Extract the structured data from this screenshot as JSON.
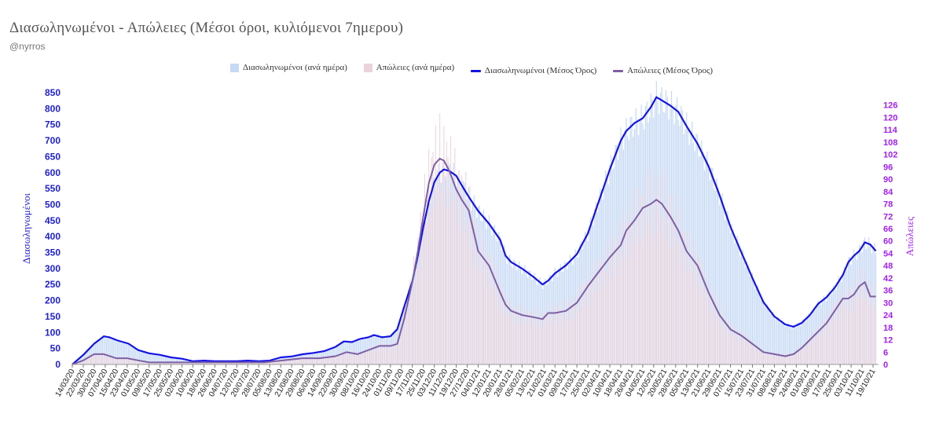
{
  "title": "Διασωληνωμένοι - Απώλειες (Μέσοι όροι, κυλιόμενοι 7ημερου)",
  "subtitle": "@nyrros",
  "legend": [
    {
      "label": "Διασωληνωμένοι (ανά ημέρα)",
      "kind": "box",
      "color": "#c6d9f5"
    },
    {
      "label": "Απώλειες (ανά ημέρα)",
      "kind": "box",
      "color": "#ead3dc"
    },
    {
      "label": "Διασωληνωμένοι (Μέσος Όρος)",
      "kind": "line",
      "color": "#1414e6"
    },
    {
      "label": "Απώλειες (Μέσος Όρος)",
      "kind": "line",
      "color": "#7e5fa3"
    }
  ],
  "chart_data": {
    "type": "line",
    "ylabel": "Διασωληνωμένοι",
    "y2label": "Απώλειες",
    "ylim": [
      0,
      850
    ],
    "y2lim": [
      0,
      132
    ],
    "yticks": [
      0,
      50,
      100,
      150,
      200,
      250,
      300,
      350,
      400,
      450,
      500,
      550,
      600,
      650,
      700,
      750,
      800,
      850
    ],
    "y2ticks": [
      0,
      6,
      12,
      18,
      24,
      30,
      36,
      42,
      48,
      54,
      60,
      66,
      72,
      78,
      84,
      90,
      96,
      102,
      108,
      114,
      120,
      126
    ],
    "x_start": "2020-03-14",
    "x_end": "2021-10-23",
    "xticks": [
      "14/03/20",
      "22/03/20",
      "30/03/20",
      "07/04/20",
      "15/04/20",
      "23/04/20",
      "01/05/20",
      "09/05/20",
      "17/05/20",
      "25/05/20",
      "02/06/20",
      "10/06/20",
      "18/06/20",
      "26/06/20",
      "04/07/20",
      "12/07/20",
      "20/07/20",
      "28/07/20",
      "05/08/20",
      "13/08/20",
      "21/08/20",
      "29/08/20",
      "06/09/20",
      "14/09/20",
      "22/09/20",
      "30/09/20",
      "08/10/20",
      "16/10/20",
      "24/10/20",
      "01/11/20",
      "09/11/20",
      "17/11/20",
      "25/11/20",
      "03/12/20",
      "11/12/20",
      "19/12/20",
      "27/12/20",
      "04/01/21",
      "12/01/21",
      "20/01/21",
      "28/01/21",
      "05/02/21",
      "13/02/21",
      "21/02/21",
      "01/03/21",
      "09/03/21",
      "17/03/21",
      "25/03/21",
      "02/04/21",
      "10/04/21",
      "18/04/21",
      "26/04/21",
      "04/05/21",
      "12/05/21",
      "20/05/21",
      "28/05/21",
      "05/06/21",
      "13/06/21",
      "21/06/21",
      "29/06/21",
      "07/07/21",
      "15/07/21",
      "23/07/21",
      "31/07/21",
      "08/08/21",
      "16/08/21",
      "24/08/21",
      "01/09/21",
      "09/09/21",
      "17/09/21",
      "25/09/21",
      "03/10/21",
      "11/10/21",
      "19/10/21"
    ],
    "series": [
      {
        "name": "Διασωληνωμένοι (Μέσος Όρος)",
        "axis": "left",
        "color": "#1414e6",
        "points": [
          [
            "2020-03-14",
            0
          ],
          [
            "2020-03-22",
            30
          ],
          [
            "2020-03-30",
            65
          ],
          [
            "2020-04-06",
            88
          ],
          [
            "2020-04-10",
            85
          ],
          [
            "2020-04-16",
            75
          ],
          [
            "2020-04-24",
            65
          ],
          [
            "2020-05-01",
            45
          ],
          [
            "2020-05-09",
            35
          ],
          [
            "2020-05-17",
            30
          ],
          [
            "2020-05-25",
            22
          ],
          [
            "2020-06-02",
            18
          ],
          [
            "2020-06-10",
            10
          ],
          [
            "2020-06-18",
            12
          ],
          [
            "2020-06-26",
            10
          ],
          [
            "2020-07-04",
            10
          ],
          [
            "2020-07-12",
            10
          ],
          [
            "2020-07-20",
            12
          ],
          [
            "2020-07-28",
            10
          ],
          [
            "2020-08-05",
            12
          ],
          [
            "2020-08-13",
            22
          ],
          [
            "2020-08-21",
            25
          ],
          [
            "2020-08-29",
            32
          ],
          [
            "2020-09-06",
            36
          ],
          [
            "2020-09-14",
            42
          ],
          [
            "2020-09-22",
            55
          ],
          [
            "2020-09-28",
            72
          ],
          [
            "2020-10-04",
            70
          ],
          [
            "2020-10-10",
            80
          ],
          [
            "2020-10-16",
            85
          ],
          [
            "2020-10-20",
            92
          ],
          [
            "2020-10-26",
            85
          ],
          [
            "2020-11-01",
            88
          ],
          [
            "2020-11-06",
            110
          ],
          [
            "2020-11-11",
            180
          ],
          [
            "2020-11-17",
            260
          ],
          [
            "2020-11-21",
            340
          ],
          [
            "2020-11-25",
            430
          ],
          [
            "2020-11-29",
            510
          ],
          [
            "2020-12-03",
            570
          ],
          [
            "2020-12-07",
            600
          ],
          [
            "2020-12-10",
            610
          ],
          [
            "2020-12-14",
            605
          ],
          [
            "2020-12-19",
            590
          ],
          [
            "2020-12-23",
            560
          ],
          [
            "2020-12-28",
            525
          ],
          [
            "2021-01-04",
            480
          ],
          [
            "2021-01-12",
            440
          ],
          [
            "2021-01-20",
            390
          ],
          [
            "2021-01-24",
            340
          ],
          [
            "2021-01-28",
            320
          ],
          [
            "2021-02-05",
            300
          ],
          [
            "2021-02-13",
            275
          ],
          [
            "2021-02-20",
            250
          ],
          [
            "2021-02-24",
            262
          ],
          [
            "2021-03-01",
            285
          ],
          [
            "2021-03-09",
            310
          ],
          [
            "2021-03-17",
            345
          ],
          [
            "2021-03-25",
            410
          ],
          [
            "2021-04-02",
            510
          ],
          [
            "2021-04-10",
            610
          ],
          [
            "2021-04-18",
            700
          ],
          [
            "2021-04-22",
            730
          ],
          [
            "2021-04-28",
            755
          ],
          [
            "2021-05-04",
            770
          ],
          [
            "2021-05-10",
            805
          ],
          [
            "2021-05-14",
            836
          ],
          [
            "2021-05-18",
            826
          ],
          [
            "2021-05-24",
            810
          ],
          [
            "2021-05-30",
            790
          ],
          [
            "2021-06-05",
            745
          ],
          [
            "2021-06-13",
            690
          ],
          [
            "2021-06-21",
            620
          ],
          [
            "2021-06-29",
            530
          ],
          [
            "2021-07-07",
            430
          ],
          [
            "2021-07-15",
            350
          ],
          [
            "2021-07-23",
            270
          ],
          [
            "2021-07-31",
            195
          ],
          [
            "2021-08-08",
            150
          ],
          [
            "2021-08-16",
            125
          ],
          [
            "2021-08-22",
            118
          ],
          [
            "2021-08-28",
            130
          ],
          [
            "2021-09-03",
            155
          ],
          [
            "2021-09-09",
            190
          ],
          [
            "2021-09-15",
            210
          ],
          [
            "2021-09-21",
            240
          ],
          [
            "2021-09-27",
            280
          ],
          [
            "2021-10-01",
            320
          ],
          [
            "2021-10-05",
            340
          ],
          [
            "2021-10-09",
            355
          ],
          [
            "2021-10-13",
            382
          ],
          [
            "2021-10-17",
            375
          ],
          [
            "2021-10-21",
            355
          ]
        ]
      },
      {
        "name": "Απώλειες (Μέσος Όρος)",
        "axis": "right",
        "color": "#7e5fa3",
        "points": [
          [
            "2020-03-14",
            0
          ],
          [
            "2020-03-22",
            2
          ],
          [
            "2020-03-30",
            5
          ],
          [
            "2020-04-06",
            5
          ],
          [
            "2020-04-15",
            3
          ],
          [
            "2020-04-23",
            3
          ],
          [
            "2020-05-01",
            2
          ],
          [
            "2020-05-09",
            1
          ],
          [
            "2020-05-17",
            1
          ],
          [
            "2020-06-01",
            1
          ],
          [
            "2020-06-15",
            1
          ],
          [
            "2020-07-01",
            1
          ],
          [
            "2020-07-15",
            1
          ],
          [
            "2020-08-01",
            1
          ],
          [
            "2020-08-15",
            2
          ],
          [
            "2020-08-29",
            3
          ],
          [
            "2020-09-10",
            3
          ],
          [
            "2020-09-22",
            4
          ],
          [
            "2020-09-30",
            6
          ],
          [
            "2020-10-08",
            5
          ],
          [
            "2020-10-16",
            7
          ],
          [
            "2020-10-24",
            9
          ],
          [
            "2020-11-01",
            9
          ],
          [
            "2020-11-06",
            10
          ],
          [
            "2020-11-11",
            22
          ],
          [
            "2020-11-17",
            40
          ],
          [
            "2020-11-21",
            55
          ],
          [
            "2020-11-25",
            72
          ],
          [
            "2020-11-29",
            88
          ],
          [
            "2020-12-03",
            97
          ],
          [
            "2020-12-07",
            100
          ],
          [
            "2020-12-10",
            99
          ],
          [
            "2020-12-14",
            94
          ],
          [
            "2020-12-19",
            85
          ],
          [
            "2020-12-23",
            80
          ],
          [
            "2020-12-28",
            75
          ],
          [
            "2021-01-04",
            55
          ],
          [
            "2021-01-12",
            48
          ],
          [
            "2021-01-20",
            35
          ],
          [
            "2021-01-24",
            29
          ],
          [
            "2021-01-28",
            26
          ],
          [
            "2021-02-05",
            24
          ],
          [
            "2021-02-13",
            23
          ],
          [
            "2021-02-20",
            22
          ],
          [
            "2021-02-24",
            25
          ],
          [
            "2021-03-01",
            25
          ],
          [
            "2021-03-09",
            26
          ],
          [
            "2021-03-17",
            30
          ],
          [
            "2021-03-25",
            38
          ],
          [
            "2021-04-02",
            45
          ],
          [
            "2021-04-10",
            52
          ],
          [
            "2021-04-18",
            58
          ],
          [
            "2021-04-22",
            65
          ],
          [
            "2021-04-28",
            70
          ],
          [
            "2021-05-04",
            76
          ],
          [
            "2021-05-10",
            78
          ],
          [
            "2021-05-14",
            80
          ],
          [
            "2021-05-18",
            78
          ],
          [
            "2021-05-24",
            72
          ],
          [
            "2021-05-30",
            65
          ],
          [
            "2021-06-05",
            55
          ],
          [
            "2021-06-13",
            48
          ],
          [
            "2021-06-21",
            35
          ],
          [
            "2021-06-29",
            24
          ],
          [
            "2021-07-07",
            17
          ],
          [
            "2021-07-15",
            14
          ],
          [
            "2021-07-23",
            10
          ],
          [
            "2021-07-31",
            6
          ],
          [
            "2021-08-08",
            5
          ],
          [
            "2021-08-16",
            4
          ],
          [
            "2021-08-22",
            5
          ],
          [
            "2021-08-28",
            8
          ],
          [
            "2021-09-03",
            12
          ],
          [
            "2021-09-09",
            16
          ],
          [
            "2021-09-15",
            20
          ],
          [
            "2021-09-21",
            26
          ],
          [
            "2021-09-27",
            32
          ],
          [
            "2021-10-01",
            32
          ],
          [
            "2021-10-05",
            34
          ],
          [
            "2021-10-09",
            38
          ],
          [
            "2021-10-13",
            40
          ],
          [
            "2021-10-17",
            33
          ],
          [
            "2021-10-21",
            33
          ]
        ]
      }
    ],
    "bars": [
      {
        "name": "Διασωληνωμένοι (ανά ημέρα)",
        "follows": "Διασωληνωμένοι (Μέσος Όρος)",
        "color": "#c6d9f5"
      },
      {
        "name": "Απώλειες (ανά ημέρα)",
        "follows": "Απώλειες (Μέσος Όρος)",
        "color": "#ead3dc"
      }
    ]
  }
}
